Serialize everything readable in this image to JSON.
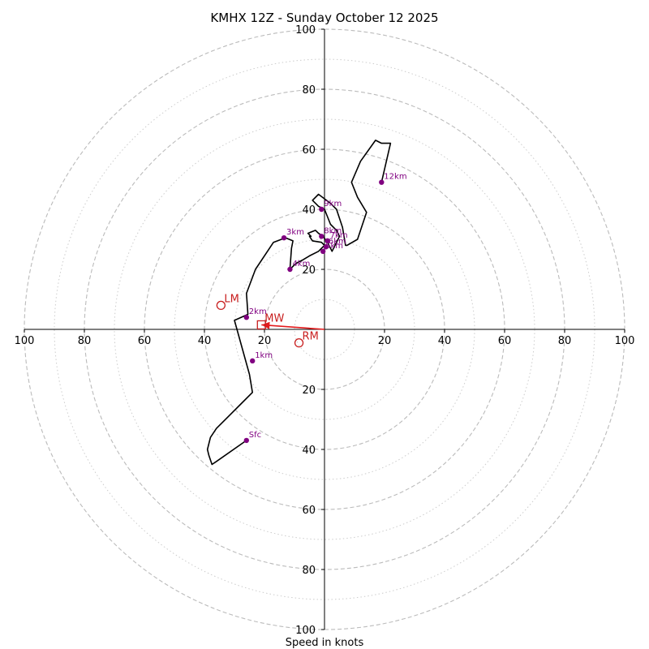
{
  "chart_data": {
    "type": "hodograph",
    "title": "KMHX 12Z - Sunday October 12 2025",
    "xlabel": "Speed in knots",
    "units": "knots",
    "range": [
      -100,
      100
    ],
    "ring_major": [
      20,
      40,
      60,
      80,
      100
    ],
    "ring_minor": [
      10,
      30,
      50,
      70,
      90
    ],
    "x_tick_labels": [
      "100",
      "80",
      "60",
      "40",
      "20",
      "20",
      "40",
      "60",
      "80",
      "100"
    ],
    "x_tick_values": [
      -100,
      -80,
      -60,
      -40,
      -20,
      20,
      40,
      60,
      80,
      100
    ],
    "y_tick_labels": [
      "100",
      "80",
      "60",
      "40",
      "20",
      "20",
      "40",
      "60",
      "80",
      "100"
    ],
    "y_tick_values": [
      100,
      80,
      60,
      40,
      20,
      -20,
      -40,
      -60,
      -80,
      -100
    ],
    "grid": true,
    "trace": {
      "u": [
        -26,
        -36,
        -37.5,
        -38.5,
        -39,
        -38,
        -36,
        -32,
        -28,
        -24,
        -25,
        -30,
        -25.5,
        -26,
        -23,
        -19,
        -17,
        -13,
        -10.5,
        -11,
        -11.5,
        -9.5,
        -7.5,
        -5,
        -2,
        -1,
        0,
        -1,
        -4,
        -5,
        -4.5,
        -5.5,
        -3,
        -2,
        -0.5,
        1,
        2.5,
        5,
        4,
        2,
        0,
        -2,
        -4,
        -2,
        2,
        4,
        6,
        7,
        7.5,
        11,
        14,
        11,
        9,
        12,
        17,
        19,
        22,
        19
      ],
      "v": [
        -37,
        -44,
        -45,
        -42,
        -40,
        -36,
        -33,
        -29,
        -25,
        -21,
        -15,
        3,
        5,
        12,
        20,
        26,
        29,
        30.5,
        29.5,
        27,
        20,
        22,
        23,
        24.5,
        26,
        27,
        28,
        29,
        29.5,
        31,
        31,
        32,
        33,
        32,
        31,
        29,
        26,
        31,
        33,
        35,
        40,
        41,
        43,
        45,
        42,
        40,
        34,
        28,
        28,
        30,
        39,
        44,
        49,
        56,
        63,
        62,
        62,
        49
      ]
    },
    "height_markers": [
      {
        "label": "Sfc",
        "u": -26,
        "v": -37
      },
      {
        "label": "1km",
        "u": -24,
        "v": -10.5
      },
      {
        "label": "2km",
        "u": -26,
        "v": 4
      },
      {
        "label": "3km",
        "u": -13.5,
        "v": 30.5
      },
      {
        "label": "4km",
        "u": -11.5,
        "v": 20
      },
      {
        "label": "5km",
        "u": -0.5,
        "v": 26
      },
      {
        "label": "6km",
        "u": 0.5,
        "v": 27.5
      },
      {
        "label": "7km",
        "u": 1,
        "v": 29.5
      },
      {
        "label": "8km",
        "u": -1,
        "v": 31
      },
      {
        "label": "9km",
        "u": -1,
        "v": 40
      },
      {
        "label": "12km",
        "u": 19,
        "v": 49
      }
    ],
    "motion_markers": [
      {
        "label": "LM",
        "u": -34.5,
        "v": 8,
        "shape": "circle"
      },
      {
        "label": "MW",
        "u": -21,
        "v": 1.5,
        "shape": "square"
      },
      {
        "label": "RM",
        "u": -8.5,
        "v": -4.5,
        "shape": "circle"
      }
    ],
    "mean_wind_arrow": {
      "from_u": 0,
      "from_v": 0,
      "to_u": -21,
      "to_v": 1.5
    },
    "colors": {
      "trace": "#000000",
      "marker": "#800080",
      "motion": "#c81e1e",
      "arrow": "#e31a1c",
      "grid": "#bbbbbb",
      "axis": "#000000"
    }
  }
}
